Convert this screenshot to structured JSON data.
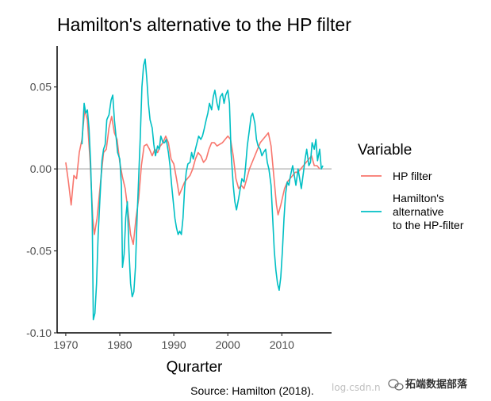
{
  "chart_data": {
    "type": "line",
    "title": "Hamilton's alternative to the HP filter",
    "xlabel": "Qurarter",
    "ylabel": "",
    "caption": "Source: Hamilton (2018).",
    "xlim": [
      1968.4,
      2019.2
    ],
    "ylim": [
      -0.1,
      0.075
    ],
    "x_ticks": [
      1970,
      1980,
      1990,
      2000,
      2010
    ],
    "x_tick_labels": [
      "1970",
      "1980",
      "1990",
      "2000",
      "2010"
    ],
    "y_ticks": [
      -0.1,
      -0.05,
      0.0,
      0.05
    ],
    "y_tick_labels": [
      "-0.10",
      "-0.05",
      "0.00",
      "0.05"
    ],
    "zero_line": true,
    "grid": false,
    "legend": {
      "title": "Variable",
      "position": "right",
      "entries": [
        {
          "lines": [
            "HP filter"
          ],
          "color": "#F8766D"
        },
        {
          "lines": [
            "Hamilton's",
            "alternative",
            "to the HP-filter"
          ],
          "color": "#00BFC4"
        }
      ]
    },
    "series": [
      {
        "name": "HP filter",
        "color": "#F8766D",
        "points": [
          [
            1970.0,
            0.004
          ],
          [
            1970.5,
            -0.008
          ],
          [
            1971.0,
            -0.022
          ],
          [
            1971.5,
            -0.004
          ],
          [
            1972.0,
            -0.006
          ],
          [
            1972.5,
            0.01
          ],
          [
            1973.0,
            0.018
          ],
          [
            1973.5,
            0.036
          ],
          [
            1974.0,
            0.03
          ],
          [
            1974.5,
            0.005
          ],
          [
            1975.0,
            -0.03
          ],
          [
            1975.3,
            -0.04
          ],
          [
            1975.8,
            -0.03
          ],
          [
            1976.5,
            -0.006
          ],
          [
            1977.0,
            0.01
          ],
          [
            1977.5,
            0.012
          ],
          [
            1978.0,
            0.025
          ],
          [
            1978.5,
            0.032
          ],
          [
            1979.0,
            0.022
          ],
          [
            1979.5,
            0.018
          ],
          [
            1980.0,
            0.004
          ],
          [
            1980.5,
            -0.005
          ],
          [
            1981.0,
            -0.012
          ],
          [
            1981.5,
            -0.025
          ],
          [
            1982.0,
            -0.04
          ],
          [
            1982.5,
            -0.046
          ],
          [
            1983.0,
            -0.03
          ],
          [
            1983.5,
            -0.018
          ],
          [
            1984.0,
            0.002
          ],
          [
            1984.5,
            0.014
          ],
          [
            1985.0,
            0.015
          ],
          [
            1985.5,
            0.012
          ],
          [
            1986.0,
            0.008
          ],
          [
            1986.5,
            0.012
          ],
          [
            1987.0,
            0.01
          ],
          [
            1987.5,
            0.014
          ],
          [
            1988.0,
            0.016
          ],
          [
            1988.5,
            0.02
          ],
          [
            1989.0,
            0.016
          ],
          [
            1989.5,
            0.006
          ],
          [
            1990.0,
            0.003
          ],
          [
            1990.5,
            -0.006
          ],
          [
            1991.0,
            -0.016
          ],
          [
            1991.5,
            -0.012
          ],
          [
            1992.0,
            -0.008
          ],
          [
            1992.5,
            -0.006
          ],
          [
            1993.0,
            -0.004
          ],
          [
            1993.5,
            0.0
          ],
          [
            1994.0,
            0.006
          ],
          [
            1994.5,
            0.01
          ],
          [
            1995.0,
            0.008
          ],
          [
            1995.5,
            0.004
          ],
          [
            1996.0,
            0.006
          ],
          [
            1996.5,
            0.012
          ],
          [
            1997.0,
            0.016
          ],
          [
            1997.5,
            0.016
          ],
          [
            1998.0,
            0.014
          ],
          [
            1998.5,
            0.015
          ],
          [
            1999.0,
            0.016
          ],
          [
            1999.5,
            0.018
          ],
          [
            2000.0,
            0.02
          ],
          [
            2000.5,
            0.018
          ],
          [
            2001.0,
            0.008
          ],
          [
            2001.5,
            -0.006
          ],
          [
            2002.0,
            -0.012
          ],
          [
            2002.5,
            -0.01
          ],
          [
            2003.0,
            -0.012
          ],
          [
            2003.5,
            -0.006
          ],
          [
            2004.0,
            0.0
          ],
          [
            2004.5,
            0.004
          ],
          [
            2005.0,
            0.008
          ],
          [
            2005.5,
            0.012
          ],
          [
            2006.0,
            0.016
          ],
          [
            2006.5,
            0.018
          ],
          [
            2007.0,
            0.02
          ],
          [
            2007.5,
            0.022
          ],
          [
            2008.0,
            0.014
          ],
          [
            2008.5,
            -0.004
          ],
          [
            2009.0,
            -0.022
          ],
          [
            2009.3,
            -0.028
          ],
          [
            2009.8,
            -0.022
          ],
          [
            2010.5,
            -0.012
          ],
          [
            2011.0,
            -0.008
          ],
          [
            2011.5,
            -0.006
          ],
          [
            2012.0,
            -0.004
          ],
          [
            2012.5,
            -0.002
          ],
          [
            2013.0,
            -0.002
          ],
          [
            2013.5,
            0.0
          ],
          [
            2014.0,
            0.002
          ],
          [
            2014.5,
            0.004
          ],
          [
            2015.0,
            0.006
          ],
          [
            2015.5,
            0.008
          ],
          [
            2016.0,
            0.002
          ],
          [
            2016.5,
            0.002
          ],
          [
            2017.0,
            0.0
          ]
        ]
      },
      {
        "name": "Hamilton's alternative to the HP-filter",
        "color": "#00BFC4",
        "points": [
          [
            1973.0,
            0.015
          ],
          [
            1973.4,
            0.04
          ],
          [
            1973.7,
            0.034
          ],
          [
            1974.0,
            0.036
          ],
          [
            1974.3,
            0.025
          ],
          [
            1974.6,
            0.004
          ],
          [
            1974.9,
            -0.03
          ],
          [
            1975.1,
            -0.092
          ],
          [
            1975.4,
            -0.088
          ],
          [
            1975.7,
            -0.07
          ],
          [
            1976.0,
            -0.04
          ],
          [
            1976.3,
            -0.02
          ],
          [
            1976.7,
            0.005
          ],
          [
            1977.0,
            0.012
          ],
          [
            1977.3,
            0.015
          ],
          [
            1977.6,
            0.03
          ],
          [
            1978.0,
            0.033
          ],
          [
            1978.4,
            0.042
          ],
          [
            1978.7,
            0.045
          ],
          [
            1979.0,
            0.03
          ],
          [
            1979.3,
            0.02
          ],
          [
            1979.6,
            0.01
          ],
          [
            1980.0,
            0.006
          ],
          [
            1980.3,
            -0.01
          ],
          [
            1980.5,
            -0.06
          ],
          [
            1980.8,
            -0.052
          ],
          [
            1981.1,
            -0.03
          ],
          [
            1981.4,
            -0.02
          ],
          [
            1981.7,
            -0.05
          ],
          [
            1982.0,
            -0.07
          ],
          [
            1982.3,
            -0.078
          ],
          [
            1982.6,
            -0.075
          ],
          [
            1982.9,
            -0.06
          ],
          [
            1983.2,
            -0.03
          ],
          [
            1983.5,
            -0.005
          ],
          [
            1983.8,
            0.02
          ],
          [
            1984.1,
            0.05
          ],
          [
            1984.4,
            0.063
          ],
          [
            1984.7,
            0.067
          ],
          [
            1985.0,
            0.055
          ],
          [
            1985.3,
            0.04
          ],
          [
            1985.6,
            0.03
          ],
          [
            1986.0,
            0.025
          ],
          [
            1986.3,
            0.015
          ],
          [
            1986.6,
            0.008
          ],
          [
            1987.0,
            0.014
          ],
          [
            1987.3,
            0.012
          ],
          [
            1987.6,
            0.02
          ],
          [
            1988.0,
            0.016
          ],
          [
            1988.3,
            0.016
          ],
          [
            1988.6,
            0.018
          ],
          [
            1989.0,
            0.01
          ],
          [
            1989.3,
            0.002
          ],
          [
            1989.6,
            -0.01
          ],
          [
            1989.9,
            -0.02
          ],
          [
            1990.2,
            -0.03
          ],
          [
            1990.5,
            -0.036
          ],
          [
            1990.8,
            -0.04
          ],
          [
            1991.1,
            -0.038
          ],
          [
            1991.4,
            -0.04
          ],
          [
            1991.7,
            -0.03
          ],
          [
            1992.0,
            -0.012
          ],
          [
            1992.3,
            -0.002
          ],
          [
            1992.6,
            0.003
          ],
          [
            1993.0,
            0.004
          ],
          [
            1993.3,
            0.01
          ],
          [
            1993.6,
            0.006
          ],
          [
            1994.0,
            0.012
          ],
          [
            1994.3,
            0.016
          ],
          [
            1994.6,
            0.02
          ],
          [
            1995.0,
            0.018
          ],
          [
            1995.3,
            0.02
          ],
          [
            1995.6,
            0.024
          ],
          [
            1996.0,
            0.03
          ],
          [
            1996.3,
            0.034
          ],
          [
            1996.6,
            0.04
          ],
          [
            1997.0,
            0.036
          ],
          [
            1997.3,
            0.044
          ],
          [
            1997.6,
            0.048
          ],
          [
            1998.0,
            0.04
          ],
          [
            1998.3,
            0.036
          ],
          [
            1998.6,
            0.044
          ],
          [
            1999.0,
            0.046
          ],
          [
            1999.3,
            0.04
          ],
          [
            1999.6,
            0.045
          ],
          [
            2000.0,
            0.048
          ],
          [
            2000.3,
            0.04
          ],
          [
            2000.6,
            0.01
          ],
          [
            2001.0,
            -0.01
          ],
          [
            2001.3,
            -0.02
          ],
          [
            2001.6,
            -0.025
          ],
          [
            2002.0,
            -0.018
          ],
          [
            2002.3,
            -0.012
          ],
          [
            2002.6,
            -0.006
          ],
          [
            2003.0,
            -0.008
          ],
          [
            2003.3,
            0.002
          ],
          [
            2003.6,
            0.014
          ],
          [
            2004.0,
            0.024
          ],
          [
            2004.3,
            0.032
          ],
          [
            2004.6,
            0.034
          ],
          [
            2005.0,
            0.028
          ],
          [
            2005.3,
            0.018
          ],
          [
            2005.6,
            0.014
          ],
          [
            2006.0,
            0.012
          ],
          [
            2006.3,
            0.008
          ],
          [
            2006.6,
            0.01
          ],
          [
            2007.0,
            0.012
          ],
          [
            2007.3,
            0.004
          ],
          [
            2007.6,
            0.0
          ],
          [
            2008.0,
            -0.01
          ],
          [
            2008.3,
            -0.03
          ],
          [
            2008.6,
            -0.05
          ],
          [
            2008.9,
            -0.062
          ],
          [
            2009.2,
            -0.07
          ],
          [
            2009.5,
            -0.074
          ],
          [
            2009.8,
            -0.066
          ],
          [
            2010.1,
            -0.05
          ],
          [
            2010.4,
            -0.03
          ],
          [
            2010.7,
            -0.015
          ],
          [
            2011.0,
            -0.008
          ],
          [
            2011.3,
            -0.01
          ],
          [
            2011.6,
            -0.004
          ],
          [
            2012.0,
            0.002
          ],
          [
            2012.3,
            -0.004
          ],
          [
            2012.6,
            -0.01
          ],
          [
            2013.0,
            0.0
          ],
          [
            2013.3,
            -0.006
          ],
          [
            2013.6,
            -0.012
          ],
          [
            2014.0,
            -0.002
          ],
          [
            2014.3,
            0.006
          ],
          [
            2014.6,
            0.012
          ],
          [
            2015.0,
            0.002
          ],
          [
            2015.3,
            0.004
          ],
          [
            2015.6,
            0.016
          ],
          [
            2016.0,
            0.012
          ],
          [
            2016.3,
            0.018
          ],
          [
            2016.6,
            0.005
          ],
          [
            2017.0,
            0.012
          ],
          [
            2017.3,
            0.0
          ],
          [
            2017.6,
            0.002
          ]
        ]
      }
    ]
  },
  "watermark": {
    "faint_text": "log.csdn.n",
    "brand_text": "拓端数据部落"
  }
}
